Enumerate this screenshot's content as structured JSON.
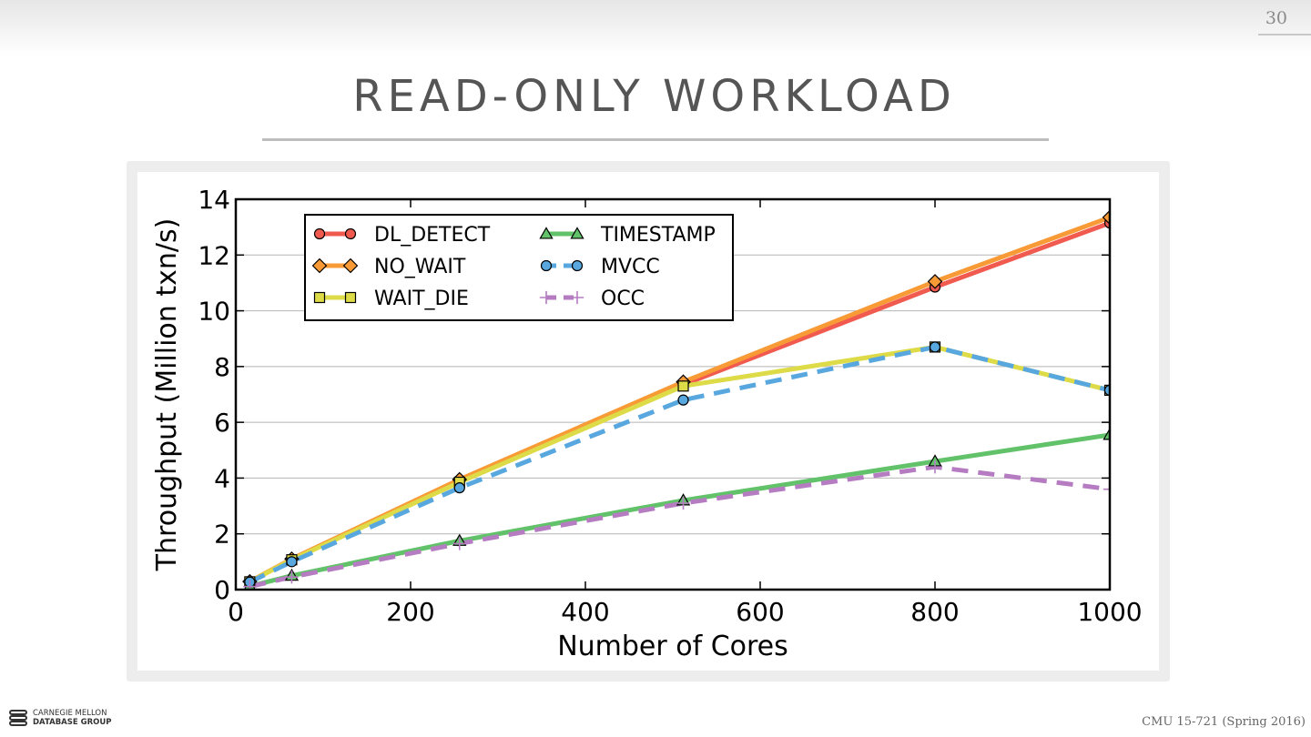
{
  "page": {
    "number": "30",
    "course": "CMU 15-721 (Spring 2016)"
  },
  "slide": {
    "title": "READ-ONLY WORKLOAD"
  },
  "logo": {
    "line1": "CARNEGIE MELLON",
    "line2": "DATABASE GROUP"
  },
  "chart_data": {
    "type": "line",
    "xlabel": "Number of Cores",
    "ylabel": "Throughput (Million txn/s)",
    "xlim": [
      0,
      1000
    ],
    "ylim": [
      0,
      14
    ],
    "xticks": [
      0,
      200,
      400,
      600,
      800,
      1000
    ],
    "yticks": [
      0,
      2,
      4,
      6,
      8,
      10,
      12,
      14
    ],
    "grid": "horizontal",
    "legend_position": "top-left",
    "x": [
      16,
      64,
      256,
      512,
      800,
      1000
    ],
    "series": [
      {
        "name": "DL_DETECT",
        "values": [
          0.28,
          1.08,
          3.9,
          7.35,
          10.85,
          13.15
        ],
        "color": "#f05a4f",
        "marker": "circle",
        "dash": "solid"
      },
      {
        "name": "NO_WAIT",
        "values": [
          0.29,
          1.1,
          3.95,
          7.45,
          11.05,
          13.35
        ],
        "color": "#f89a35",
        "marker": "diamond",
        "dash": "solid"
      },
      {
        "name": "WAIT_DIE",
        "values": [
          0.28,
          1.07,
          3.85,
          7.3,
          8.7,
          7.15
        ],
        "color": "#dedb48",
        "marker": "square",
        "dash": "solid"
      },
      {
        "name": "TIMESTAMP",
        "values": [
          0.12,
          0.5,
          1.75,
          3.2,
          4.6,
          5.55
        ],
        "color": "#62c26a",
        "marker": "triangle",
        "dash": "solid"
      },
      {
        "name": "MVCC",
        "values": [
          0.27,
          1.0,
          3.65,
          6.8,
          8.7,
          7.15
        ],
        "color": "#58a7de",
        "marker": "circle",
        "dash": "dashed"
      },
      {
        "name": "OCC",
        "values": [
          0.11,
          0.45,
          1.65,
          3.1,
          4.4,
          3.6
        ],
        "color": "#b67cc2",
        "marker": "plus",
        "dash": "dashed"
      }
    ]
  }
}
